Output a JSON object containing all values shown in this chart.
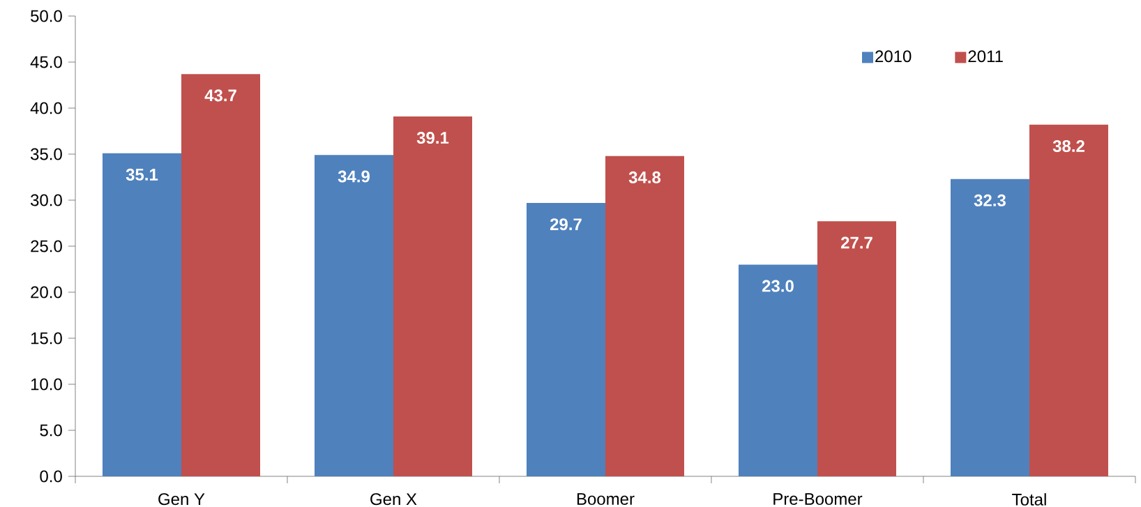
{
  "chart_data": {
    "type": "bar",
    "categories": [
      "Gen Y",
      "Gen X",
      "Boomer",
      "Pre-Boomer",
      "Total"
    ],
    "series": [
      {
        "name": "2010",
        "color": "#4f81bd",
        "values": [
          35.1,
          34.9,
          29.7,
          23.0,
          32.3
        ],
        "value_labels": [
          "35.1",
          "34.9",
          "29.7",
          "23.0",
          "32.3"
        ]
      },
      {
        "name": "2011",
        "color": "#c0504d",
        "values": [
          43.7,
          39.1,
          34.8,
          27.7,
          38.2
        ],
        "value_labels": [
          "43.7",
          "39.1",
          "34.8",
          "27.7",
          "38.2"
        ]
      }
    ],
    "ylim": [
      0,
      50
    ],
    "yticks": [
      {
        "value": 0,
        "label": "0.0"
      },
      {
        "value": 5,
        "label": "5.0"
      },
      {
        "value": 10,
        "label": "10.0"
      },
      {
        "value": 15,
        "label": "15.0"
      },
      {
        "value": 20,
        "label": "20.0"
      },
      {
        "value": 25,
        "label": "25.0"
      },
      {
        "value": 30,
        "label": "30.0"
      },
      {
        "value": 35,
        "label": "35.0"
      },
      {
        "value": 40,
        "label": "40.0"
      },
      {
        "value": 45,
        "label": "45.0"
      },
      {
        "value": 50,
        "label": "50.0"
      }
    ],
    "legend": "top right",
    "grid": false
  }
}
